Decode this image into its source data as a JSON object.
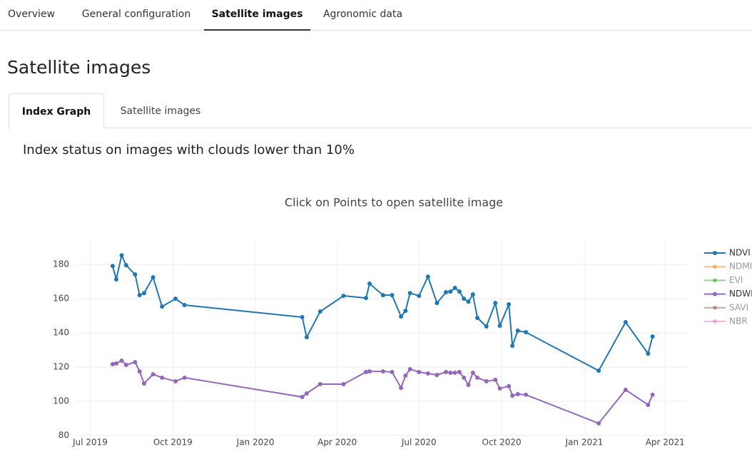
{
  "nav": {
    "tabs": [
      "Overview",
      "General configuration",
      "Satellite images",
      "Agronomic data"
    ],
    "active": 2
  },
  "page_title": "Satellite images",
  "subtabs": {
    "tabs": [
      "Index Graph",
      "Satellite images"
    ],
    "active": 0
  },
  "section_title": "Index status on images with clouds lower than 10%",
  "chart_data": {
    "type": "line",
    "title": "Click on Points to open satellite image",
    "x": [
      "2019-07-26",
      "2019-07-30",
      "2019-08-05",
      "2019-08-10",
      "2019-08-20",
      "2019-08-25",
      "2019-08-30",
      "2019-09-09",
      "2019-09-19",
      "2019-10-04",
      "2019-10-14",
      "2020-02-22",
      "2020-02-27",
      "2020-03-13",
      "2020-04-08",
      "2020-05-03",
      "2020-05-07",
      "2020-05-22",
      "2020-06-01",
      "2020-06-11",
      "2020-06-16",
      "2020-06-21",
      "2020-07-01",
      "2020-07-11",
      "2020-07-21",
      "2020-07-31",
      "2020-08-05",
      "2020-08-10",
      "2020-08-15",
      "2020-08-20",
      "2020-08-25",
      "2020-08-30",
      "2020-09-04",
      "2020-09-14",
      "2020-09-24",
      "2020-09-29",
      "2020-10-09",
      "2020-10-13",
      "2020-10-19",
      "2020-10-28",
      "2021-01-17",
      "2021-02-16",
      "2021-03-13",
      "2021-03-18"
    ],
    "series": [
      {
        "name": "NDVI",
        "color": "#1f77b4",
        "visible": true,
        "values": [
          179.2,
          171.3,
          185.4,
          179.6,
          174.2,
          162.1,
          163.3,
          172.5,
          155.4,
          160,
          156.3,
          149.2,
          137.5,
          152.5,
          161.7,
          160.4,
          168.8,
          162.1,
          162.1,
          149.6,
          152.9,
          163.3,
          161.7,
          172.9,
          157.5,
          163.8,
          164.2,
          166.3,
          164.2,
          160,
          158.3,
          162.5,
          148.8,
          143.8,
          157.5,
          144.2,
          156.7,
          132.5,
          141.3,
          140.4,
          117.9,
          146.3,
          127.9,
          137.9
        ]
      },
      {
        "name": "NDMI",
        "color": "#ff7f0e",
        "visible": false
      },
      {
        "name": "EVI",
        "color": "#2ca02c",
        "visible": false
      },
      {
        "name": "NDWI",
        "color": "#9467bd",
        "visible": true,
        "values": [
          121.7,
          122.1,
          123.8,
          121.3,
          122.9,
          117.5,
          110.4,
          115.8,
          113.8,
          111.7,
          113.8,
          102.5,
          104.6,
          110,
          110,
          117.1,
          117.5,
          117.5,
          117.1,
          107.9,
          115,
          118.8,
          117.1,
          116.3,
          115.4,
          117.1,
          116.7,
          116.7,
          117.1,
          113.8,
          109.6,
          116.7,
          113.8,
          111.7,
          112.5,
          107.5,
          108.8,
          103.3,
          104.2,
          103.8,
          87.1,
          106.7,
          97.9,
          103.8
        ]
      },
      {
        "name": "SAVI",
        "color": "#8c564b",
        "visible": false
      },
      {
        "name": "NBR",
        "color": "#e377c2",
        "visible": false
      }
    ],
    "xlim": [
      "2019-06-14",
      "2021-04-27"
    ],
    "xticks": [
      {
        "value": "2019-07-01",
        "label": "Jul 2019"
      },
      {
        "value": "2019-10-01",
        "label": "Oct 2019"
      },
      {
        "value": "2020-01-01",
        "label": "Jan 2020"
      },
      {
        "value": "2020-04-01",
        "label": "Apr 2020"
      },
      {
        "value": "2020-07-01",
        "label": "Jul 2020"
      },
      {
        "value": "2020-10-01",
        "label": "Oct 2020"
      },
      {
        "value": "2021-01-01",
        "label": "Jan 2021"
      },
      {
        "value": "2021-04-01",
        "label": "Apr 2021"
      }
    ],
    "ylim": [
      80,
      193
    ],
    "yticks": [
      80,
      100,
      120,
      140,
      160,
      180
    ],
    "grid": true,
    "legend": "right"
  }
}
